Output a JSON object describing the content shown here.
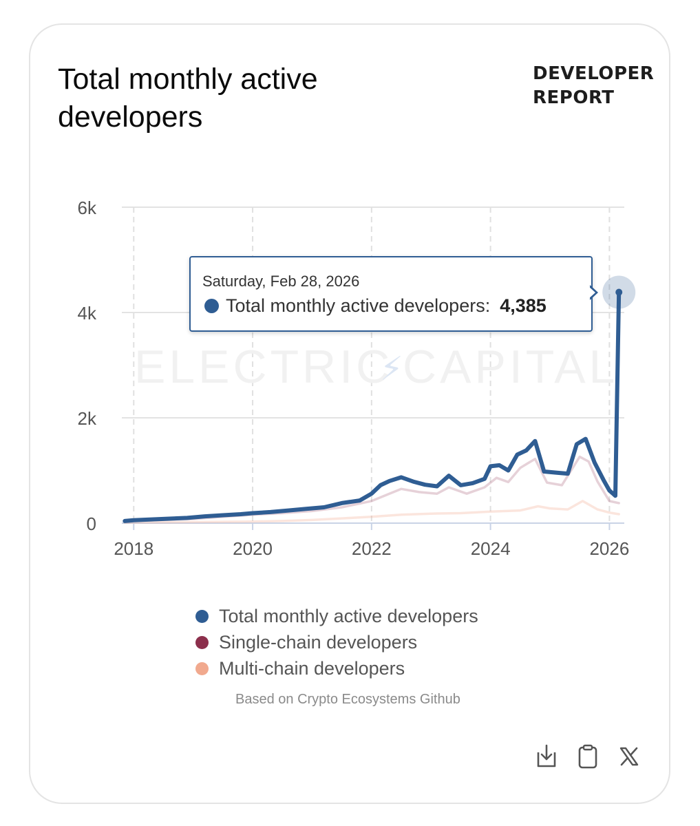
{
  "header": {
    "title": "Total monthly active developers",
    "brand_line1": "DEVELOPER",
    "brand_line2": "REPORT"
  },
  "watermark": {
    "left": "ELECTRIC",
    "right": "CAPITAL"
  },
  "tooltip": {
    "date": "Saturday, Feb 28, 2026",
    "series": "Total monthly active developers:",
    "value": "4,385"
  },
  "legend": [
    {
      "label": "Total monthly active developers",
      "color": "#2f5d93"
    },
    {
      "label": "Single-chain developers",
      "color": "#8c2f4c"
    },
    {
      "label": "Multi-chain developers",
      "color": "#f1a98e"
    }
  ],
  "footer": {
    "source": "Based on Crypto Ecosystems Github"
  },
  "actions": [
    {
      "name": "download-icon",
      "label": "Download"
    },
    {
      "name": "copy-icon",
      "label": "Copy"
    },
    {
      "name": "x-share-icon",
      "label": "Share on X"
    }
  ],
  "chart_data": {
    "type": "line",
    "title": "Total monthly active developers",
    "xlabel": "",
    "ylabel": "",
    "xlim": [
      2017.8,
      2026.25
    ],
    "ylim": [
      0,
      6000
    ],
    "yticks": [
      0,
      2000,
      4000,
      6000
    ],
    "ytick_labels": [
      "0",
      "2k",
      "4k",
      "6k"
    ],
    "xticks": [
      2018,
      2020,
      2022,
      2024,
      2026
    ],
    "xtick_labels": [
      "2018",
      "2020",
      "2022",
      "2024",
      "2026"
    ],
    "grid": true,
    "highlight": {
      "x": 2026.16,
      "y": 4385
    },
    "series": [
      {
        "name": "Total monthly active developers",
        "color": "#2f5d93",
        "x": [
          2017.85,
          2018.0,
          2018.3,
          2018.6,
          2018.9,
          2019.2,
          2019.5,
          2019.8,
          2020.0,
          2020.3,
          2020.6,
          2020.9,
          2021.2,
          2021.5,
          2021.8,
          2022.0,
          2022.15,
          2022.3,
          2022.5,
          2022.7,
          2022.9,
          2023.1,
          2023.3,
          2023.5,
          2023.7,
          2023.9,
          2024.0,
          2024.15,
          2024.3,
          2024.45,
          2024.6,
          2024.75,
          2024.9,
          2025.1,
          2025.3,
          2025.45,
          2025.6,
          2025.75,
          2025.9,
          2026.0,
          2026.1,
          2026.16
        ],
        "y": [
          40,
          55,
          70,
          85,
          100,
          130,
          150,
          170,
          190,
          210,
          240,
          270,
          300,
          380,
          430,
          560,
          720,
          800,
          870,
          790,
          730,
          700,
          900,
          720,
          760,
          840,
          1080,
          1100,
          1000,
          1300,
          1380,
          1560,
          980,
          960,
          940,
          1500,
          1600,
          1150,
          820,
          620,
          520,
          4385
        ]
      },
      {
        "name": "Single-chain developers",
        "color": "#8c2f4c",
        "x": [
          2017.85,
          2018.0,
          2018.5,
          2019.0,
          2019.5,
          2020.0,
          2020.5,
          2021.0,
          2021.5,
          2022.0,
          2022.3,
          2022.5,
          2022.8,
          2023.1,
          2023.3,
          2023.6,
          2023.9,
          2024.1,
          2024.3,
          2024.5,
          2024.75,
          2024.95,
          2025.2,
          2025.5,
          2025.65,
          2025.8,
          2026.0,
          2026.16
        ],
        "y": [
          30,
          45,
          60,
          80,
          120,
          160,
          190,
          230,
          300,
          420,
          560,
          650,
          590,
          560,
          680,
          560,
          680,
          860,
          780,
          1050,
          1220,
          770,
          720,
          1260,
          1170,
          790,
          420,
          380
        ]
      },
      {
        "name": "Multi-chain developers",
        "color": "#f1a98e",
        "x": [
          2017.85,
          2018.5,
          2019.0,
          2019.5,
          2020.0,
          2020.5,
          2021.0,
          2021.5,
          2022.0,
          2022.5,
          2023.0,
          2023.5,
          2024.0,
          2024.5,
          2024.8,
          2025.0,
          2025.3,
          2025.55,
          2025.8,
          2026.0,
          2026.16
        ],
        "y": [
          10,
          15,
          20,
          25,
          30,
          40,
          60,
          90,
          120,
          160,
          180,
          190,
          220,
          240,
          320,
          280,
          260,
          420,
          260,
          200,
          170
        ]
      }
    ]
  }
}
